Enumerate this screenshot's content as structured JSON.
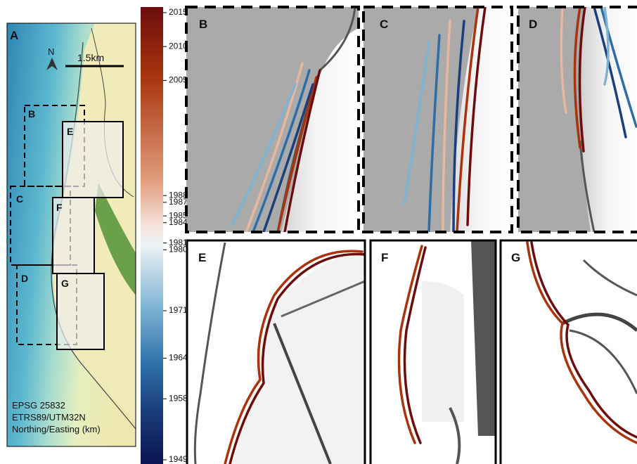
{
  "panels": [
    "A",
    "B",
    "C",
    "D",
    "E",
    "F",
    "G"
  ],
  "map_a": {
    "inset_labels": [
      "B",
      "C",
      "D",
      "E",
      "F",
      "G"
    ],
    "north": "N",
    "scale": "1.5km",
    "crs": [
      "EPSG 25832",
      "ETRS89/UTM32N",
      "Northing/Easting (km)"
    ]
  },
  "colorbar": {
    "lim": [
      1949,
      2015
    ],
    "ticks": [
      2015,
      2010,
      2005,
      1988,
      1987,
      1985,
      1984,
      1981,
      1980,
      1971,
      1964,
      1958,
      1949
    ]
  }
}
